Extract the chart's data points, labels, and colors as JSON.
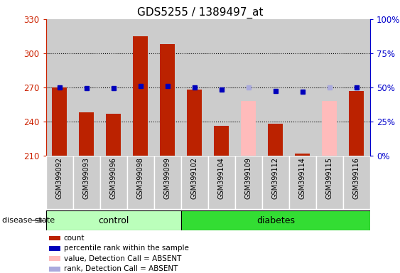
{
  "title": "GDS5255 / 1389497_at",
  "samples": [
    "GSM399092",
    "GSM399093",
    "GSM399096",
    "GSM399098",
    "GSM399099",
    "GSM399102",
    "GSM399104",
    "GSM399109",
    "GSM399112",
    "GSM399114",
    "GSM399115",
    "GSM399116"
  ],
  "groups": [
    "control",
    "control",
    "control",
    "control",
    "control",
    "diabetes",
    "diabetes",
    "diabetes",
    "diabetes",
    "diabetes",
    "diabetes",
    "diabetes"
  ],
  "count_values": [
    270,
    248,
    247,
    315,
    308,
    268,
    236,
    null,
    238,
    212,
    null,
    267
  ],
  "count_absent_values": [
    null,
    null,
    null,
    null,
    null,
    null,
    null,
    258,
    null,
    null,
    258,
    null
  ],
  "percentile_values": [
    270,
    269,
    269,
    271,
    271,
    270,
    268,
    null,
    267,
    266,
    null,
    270
  ],
  "percentile_absent_values": [
    null,
    null,
    null,
    null,
    null,
    null,
    null,
    270,
    null,
    null,
    270,
    null
  ],
  "ylim_left": [
    210,
    330
  ],
  "ylim_right": [
    0,
    100
  ],
  "yticks_left": [
    210,
    240,
    270,
    300,
    330
  ],
  "yticks_right": [
    0,
    25,
    50,
    75,
    100
  ],
  "ytick_labels_right": [
    "0%",
    "25%",
    "50%",
    "75%",
    "100%"
  ],
  "left_axis_color": "#cc2200",
  "right_axis_color": "#0000cc",
  "bar_color_present": "#bb2200",
  "bar_color_absent": "#ffbbbb",
  "dot_color_present": "#0000bb",
  "dot_color_absent": "#aaaadd",
  "control_bg": "#bbffbb",
  "diabetes_bg": "#33dd33",
  "label_bg": "#cccccc",
  "bar_width": 0.55,
  "disease_state_label": "disease state",
  "legend_items": [
    {
      "label": "count",
      "color": "#bb2200"
    },
    {
      "label": "percentile rank within the sample",
      "color": "#0000bb"
    },
    {
      "label": "value, Detection Call = ABSENT",
      "color": "#ffbbbb"
    },
    {
      "label": "rank, Detection Call = ABSENT",
      "color": "#aaaadd"
    }
  ]
}
